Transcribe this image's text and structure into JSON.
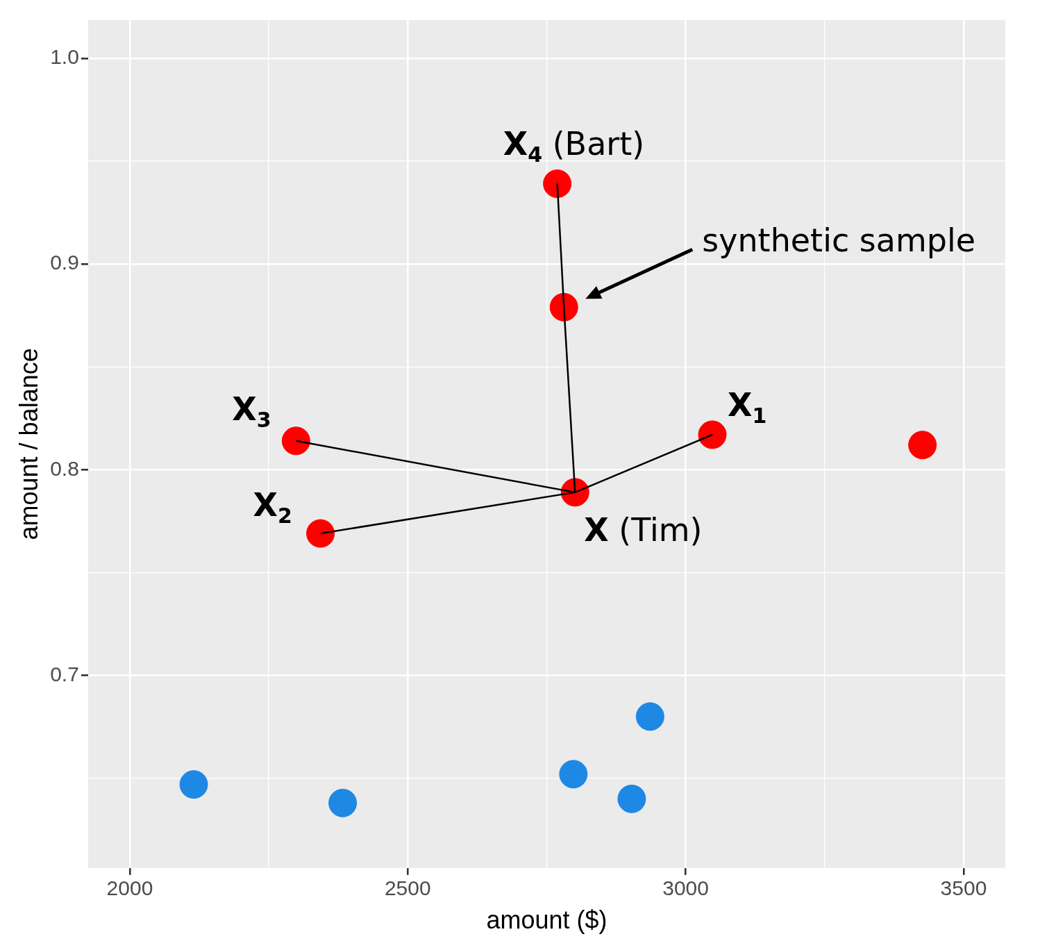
{
  "chart_data": {
    "type": "scatter",
    "xlabel": "amount ($)",
    "ylabel": "amount / balance",
    "xlim": [
      1925,
      3575
    ],
    "ylim": [
      0.6064,
      1.0185
    ],
    "xticks": [
      2000,
      {
        "value": 2250,
        "label": null
      },
      2500,
      {
        "value": 2750,
        "label": null
      },
      3000,
      {
        "value": 3250,
        "label": null
      },
      3500
    ],
    "yticks": [
      {
        "value": 0.65,
        "label": null
      },
      0.7,
      {
        "value": 0.75,
        "label": null
      },
      0.8,
      {
        "value": 0.85,
        "label": null
      },
      0.9,
      {
        "value": 0.95,
        "label": null
      },
      {
        "value": 1,
        "label": "1.0"
      }
    ],
    "grid": true,
    "legend": false,
    "marker": "circle",
    "series": [
      {
        "type": "line",
        "color": "#000000",
        "marker": "none",
        "x": [
          2801,
          3048
        ],
        "values": [
          0.789,
          0.817
        ]
      },
      {
        "type": "line",
        "color": "#000000",
        "marker": "none",
        "x": [
          2801,
          2343
        ],
        "values": [
          0.789,
          0.769
        ]
      },
      {
        "type": "line",
        "color": "#000000",
        "marker": "none",
        "x": [
          2801,
          2299
        ],
        "values": [
          0.789,
          0.814
        ]
      },
      {
        "type": "line",
        "color": "#000000",
        "marker": "none",
        "x": [
          2801,
          2781,
          2769
        ],
        "values": [
          0.789,
          0.879,
          0.939
        ]
      },
      {
        "color": "#ff0000",
        "x": [
          2769,
          2781,
          2299,
          3048,
          3426,
          2801,
          2343
        ],
        "values": [
          0.939,
          0.879,
          0.814,
          0.817,
          0.812,
          0.789,
          0.769
        ]
      },
      {
        "color": "#1e88e5",
        "x": [
          2115,
          2383,
          2798,
          2903,
          2936
        ],
        "values": [
          0.647,
          0.638,
          0.652,
          0.64,
          0.68
        ]
      }
    ],
    "annotations": [
      {
        "text": "X$_{4}$ (Bart)",
        "x": 2769,
        "y": 0.939
      },
      "synthetic sample",
      {
        "text": "X$_{3}$",
        "x": 2299,
        "y": 0.814
      },
      {
        "text": "X$_{1}$",
        "x": 3048,
        "y": 0.817
      },
      {
        "text": "X$_{2}$",
        "x": 2343,
        "y": 0.769
      },
      {
        "text": "X (Tim)",
        "x": 2801,
        "y": 0.789
      }
    ]
  }
}
